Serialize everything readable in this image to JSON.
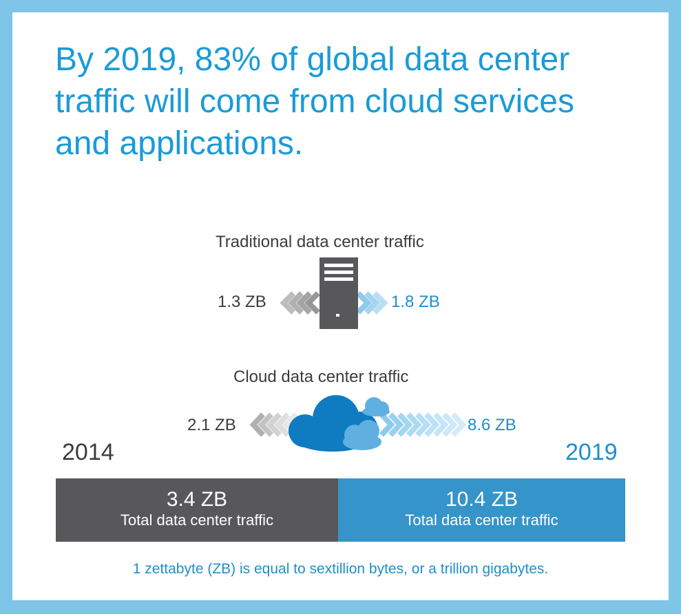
{
  "headline": {
    "line1": "By 2019, 83% of global data center",
    "line2": "traffic will come from cloud services",
    "line3": "and applications."
  },
  "traditional": {
    "label": "Traditional data center traffic",
    "value_2014": "1.3 ZB",
    "value_2019": "1.8 ZB"
  },
  "cloud": {
    "label": "Cloud data center traffic",
    "value_2014": "2.1 ZB",
    "value_2019": "8.6 ZB"
  },
  "years": {
    "start": "2014",
    "end": "2019"
  },
  "totals": {
    "start_value": "3.4 ZB",
    "start_label": "Total data center traffic",
    "end_value": "10.4 ZB",
    "end_label": "Total data center traffic"
  },
  "footnote": "1 zettabyte (ZB) is equal to sextillion bytes, or a trillion gigabytes.",
  "colors": {
    "background": "#7ec5e8",
    "headline": "#1a9bd7",
    "gray_bar": "#58585b",
    "blue_bar": "#3594c9",
    "server": "#58585b",
    "cloud_dark": "#0f7bc0",
    "cloud_light": "#5fb0e0"
  },
  "icons": [
    "server-icon",
    "cloud-icon",
    "chevrons-left-icon",
    "chevrons-right-icon"
  ]
}
